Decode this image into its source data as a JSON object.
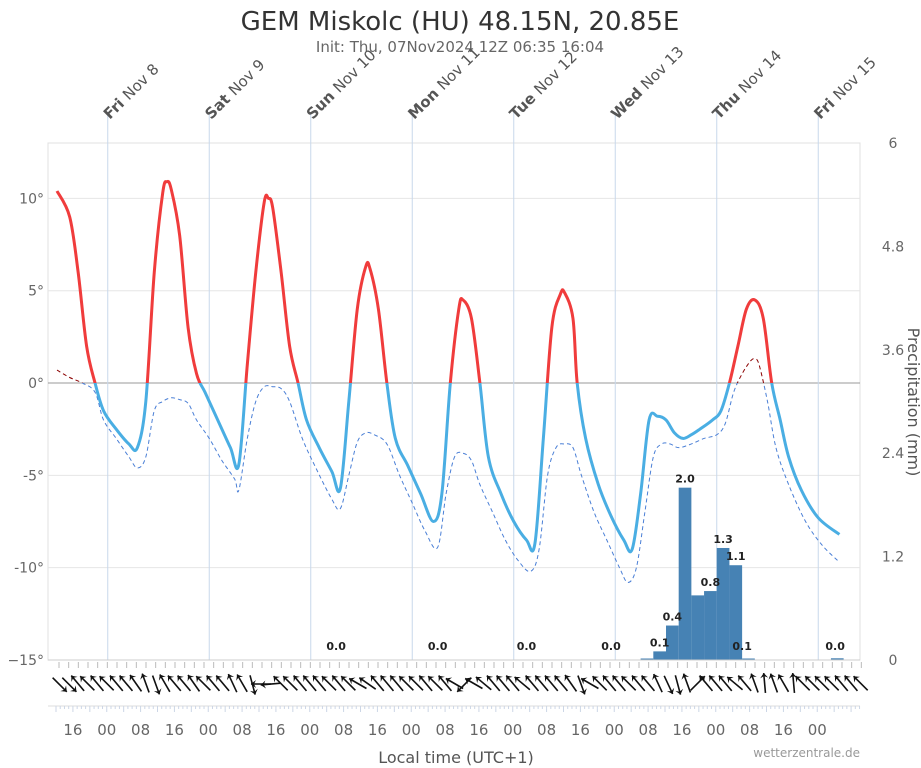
{
  "title": "GEM Miskolc (HU) 48.15N, 20.85E",
  "subtitle": "Init: Thu, 07Nov2024 12Z 06:35 16:04",
  "credit": "wetterzentrale.de",
  "xlabel": "Local time (UTC+1)",
  "y2label": "Precipitation (mm)",
  "colors": {
    "warm": "#f03c3c",
    "cold": "#4aaee3",
    "dew_warm": "#8b0000",
    "dew_cold": "#4a7fd6",
    "bars": "#4682b4",
    "grid": "#e6e6e6",
    "zero": "#999999",
    "day_line": "#c8d8ec"
  },
  "chart_data": {
    "type": "line",
    "x_unit": "hours since Thu 07 Nov 12:00 local",
    "xlim": [
      0,
      192
    ],
    "ylim": [
      -15,
      13
    ],
    "y_ticks": [
      {
        "v": 10,
        "label": "10°"
      },
      {
        "v": 5,
        "label": "5°"
      },
      {
        "v": 0,
        "label": "0°"
      },
      {
        "v": -5,
        "label": "-5°"
      },
      {
        "v": -10,
        "label": "-10°"
      },
      {
        "v": -15,
        "label": "−15°"
      }
    ],
    "y2lim": [
      0,
      6
    ],
    "y2_ticks": [
      {
        "v": 0,
        "label": "0"
      },
      {
        "v": 1.2,
        "label": "1.2"
      },
      {
        "v": 2.4,
        "label": "2.4"
      },
      {
        "v": 3.6,
        "label": "3.6"
      },
      {
        "v": 4.8,
        "label": "4.8"
      },
      {
        "v": 6,
        "label": "6"
      }
    ],
    "days": [
      {
        "t": 12,
        "day": "Fri",
        "date": "Nov 8"
      },
      {
        "t": 36,
        "day": "Sat",
        "date": "Nov 9"
      },
      {
        "t": 60,
        "day": "Sun",
        "date": "Nov 10"
      },
      {
        "t": 84,
        "day": "Mon",
        "date": "Nov 11"
      },
      {
        "t": 108,
        "day": "Tue",
        "date": "Nov 12"
      },
      {
        "t": 132,
        "day": "Wed",
        "date": "Nov 13"
      },
      {
        "t": 156,
        "day": "Thu",
        "date": "Nov 14"
      },
      {
        "t": 180,
        "day": "Fri",
        "date": "Nov 15"
      }
    ],
    "hour_ticks": [
      {
        "t": 4,
        "label": "16"
      },
      {
        "t": 12,
        "label": "00"
      },
      {
        "t": 20,
        "label": "08"
      },
      {
        "t": 28,
        "label": "16"
      },
      {
        "t": 36,
        "label": "00"
      },
      {
        "t": 44,
        "label": "08"
      },
      {
        "t": 52,
        "label": "16"
      },
      {
        "t": 60,
        "label": "00"
      },
      {
        "t": 68,
        "label": "08"
      },
      {
        "t": 76,
        "label": "16"
      },
      {
        "t": 84,
        "label": "00"
      },
      {
        "t": 92,
        "label": "08"
      },
      {
        "t": 100,
        "label": "16"
      },
      {
        "t": 108,
        "label": "00"
      },
      {
        "t": 116,
        "label": "08"
      },
      {
        "t": 124,
        "label": "16"
      },
      {
        "t": 132,
        "label": "00"
      },
      {
        "t": 140,
        "label": "08"
      },
      {
        "t": 148,
        "label": "16"
      },
      {
        "t": 156,
        "label": "00"
      },
      {
        "t": 164,
        "label": "08"
      },
      {
        "t": 172,
        "label": "16"
      },
      {
        "t": 180,
        "label": "00"
      }
    ],
    "series": [
      {
        "name": "Temperature",
        "points": [
          [
            0,
            10.4
          ],
          [
            3,
            9
          ],
          [
            5,
            6
          ],
          [
            7,
            2
          ],
          [
            9,
            0
          ],
          [
            11,
            -1.5
          ],
          [
            14,
            -2.5
          ],
          [
            17,
            -3.3
          ],
          [
            19,
            -3.5
          ],
          [
            21,
            -1
          ],
          [
            23,
            6
          ],
          [
            25,
            10.3
          ],
          [
            26,
            10.9
          ],
          [
            27,
            10.5
          ],
          [
            29,
            8
          ],
          [
            31,
            3
          ],
          [
            33,
            0.5
          ],
          [
            35,
            -0.5
          ],
          [
            38,
            -2
          ],
          [
            41,
            -3.5
          ],
          [
            43,
            -4.4
          ],
          [
            45,
            1
          ],
          [
            47,
            6
          ],
          [
            49,
            9.8
          ],
          [
            50,
            10
          ],
          [
            51,
            9.5
          ],
          [
            53,
            6
          ],
          [
            55,
            2
          ],
          [
            57,
            0
          ],
          [
            59,
            -2
          ],
          [
            62,
            -3.5
          ],
          [
            65,
            -4.8
          ],
          [
            67,
            -5.7
          ],
          [
            69,
            -1
          ],
          [
            71,
            4
          ],
          [
            73,
            6.3
          ],
          [
            74,
            6.2
          ],
          [
            76,
            4
          ],
          [
            78,
            0
          ],
          [
            80,
            -3
          ],
          [
            83,
            -4.5
          ],
          [
            86,
            -6
          ],
          [
            89,
            -7.5
          ],
          [
            91,
            -6
          ],
          [
            93,
            0
          ],
          [
            95,
            4
          ],
          [
            96,
            4.5
          ],
          [
            98,
            3.5
          ],
          [
            100,
            0
          ],
          [
            102,
            -4
          ],
          [
            105,
            -6
          ],
          [
            108,
            -7.5
          ],
          [
            111,
            -8.5
          ],
          [
            113,
            -8.7
          ],
          [
            115,
            -3
          ],
          [
            117,
            3
          ],
          [
            119,
            4.8
          ],
          [
            120,
            4.9
          ],
          [
            122,
            3.5
          ],
          [
            123,
            0
          ],
          [
            125,
            -3
          ],
          [
            128,
            -5.5
          ],
          [
            131,
            -7.2
          ],
          [
            134,
            -8.5
          ],
          [
            136,
            -9
          ],
          [
            138,
            -6
          ],
          [
            140,
            -2
          ],
          [
            142,
            -1.8
          ],
          [
            144,
            -2
          ],
          [
            146,
            -2.7
          ],
          [
            148,
            -3
          ],
          [
            150,
            -2.8
          ],
          [
            152,
            -2.5
          ],
          [
            155,
            -2
          ],
          [
            157,
            -1.5
          ],
          [
            159,
            0
          ],
          [
            161,
            2
          ],
          [
            163,
            4
          ],
          [
            165,
            4.5
          ],
          [
            167,
            3.5
          ],
          [
            169,
            0
          ],
          [
            171,
            -2
          ],
          [
            173,
            -4
          ],
          [
            176,
            -5.8
          ],
          [
            180,
            -7.3
          ],
          [
            185,
            -8.2
          ]
        ]
      },
      {
        "name": "Dew point",
        "points": [
          [
            0,
            0.7
          ],
          [
            3,
            0.3
          ],
          [
            6,
            0
          ],
          [
            9,
            -0.5
          ],
          [
            11,
            -2
          ],
          [
            14,
            -3
          ],
          [
            17,
            -4
          ],
          [
            19,
            -4.6
          ],
          [
            21,
            -4
          ],
          [
            23,
            -1.5
          ],
          [
            25,
            -1
          ],
          [
            27,
            -0.8
          ],
          [
            29,
            -0.9
          ],
          [
            31,
            -1.1
          ],
          [
            33,
            -2
          ],
          [
            36,
            -3
          ],
          [
            39,
            -4.2
          ],
          [
            42,
            -5.2
          ],
          [
            43,
            -5.8
          ],
          [
            45,
            -3
          ],
          [
            47,
            -1
          ],
          [
            49,
            -0.2
          ],
          [
            51,
            -0.2
          ],
          [
            53,
            -0.3
          ],
          [
            55,
            -1
          ],
          [
            58,
            -3
          ],
          [
            61,
            -4.5
          ],
          [
            65,
            -6.3
          ],
          [
            67,
            -6.8
          ],
          [
            69,
            -5
          ],
          [
            71,
            -3.2
          ],
          [
            73,
            -2.7
          ],
          [
            75,
            -2.8
          ],
          [
            78,
            -3.3
          ],
          [
            81,
            -5
          ],
          [
            84,
            -6.5
          ],
          [
            87,
            -8
          ],
          [
            90,
            -8.9
          ],
          [
            92,
            -6
          ],
          [
            94,
            -4
          ],
          [
            96,
            -3.8
          ],
          [
            98,
            -4.2
          ],
          [
            100,
            -5.5
          ],
          [
            103,
            -7
          ],
          [
            106,
            -8.5
          ],
          [
            109,
            -9.6
          ],
          [
            112,
            -10.2
          ],
          [
            114,
            -9
          ],
          [
            116,
            -5
          ],
          [
            118,
            -3.5
          ],
          [
            120,
            -3.3
          ],
          [
            122,
            -3.5
          ],
          [
            124,
            -5
          ],
          [
            127,
            -7
          ],
          [
            130,
            -8.5
          ],
          [
            133,
            -10
          ],
          [
            135,
            -10.8
          ],
          [
            137,
            -10
          ],
          [
            139,
            -7
          ],
          [
            141,
            -4
          ],
          [
            143,
            -3.3
          ],
          [
            145,
            -3.3
          ],
          [
            147,
            -3.5
          ],
          [
            150,
            -3.3
          ],
          [
            153,
            -3
          ],
          [
            156,
            -2.8
          ],
          [
            158,
            -2.2
          ],
          [
            160,
            -0.5
          ],
          [
            162,
            0.5
          ],
          [
            164,
            1.2
          ],
          [
            165,
            1.3
          ],
          [
            166,
            1
          ],
          [
            168,
            -1
          ],
          [
            170,
            -3.5
          ],
          [
            173,
            -5.5
          ],
          [
            177,
            -7.5
          ],
          [
            181,
            -8.8
          ],
          [
            185,
            -9.7
          ]
        ]
      }
    ],
    "precipitation": {
      "name": "Precipitation (mm)",
      "bars": [
        {
          "t0": 162,
          "t1": 165,
          "v": 0.01
        }
      ],
      "labeled_bars": [
        {
          "t0": 138,
          "t1": 141,
          "v": 0.01,
          "label": ""
        },
        {
          "t0": 141,
          "t1": 144,
          "v": 0.1,
          "label": "0.1"
        },
        {
          "t0": 144,
          "t1": 147,
          "v": 0.4,
          "label": "0.4"
        },
        {
          "t0": 147,
          "t1": 150,
          "v": 2.0,
          "label": "2.0"
        },
        {
          "t0": 150,
          "t1": 153,
          "v": 0.75,
          "label": ""
        },
        {
          "t0": 153,
          "t1": 156,
          "v": 0.8,
          "label": "0.8"
        },
        {
          "t0": 156,
          "t1": 159,
          "v": 1.3,
          "label": "1.3"
        },
        {
          "t0": 159,
          "t1": 162,
          "v": 1.1,
          "label": "1.1"
        },
        {
          "t0": 183,
          "t1": 186,
          "v": 0.02,
          "label": ""
        }
      ],
      "zero_labels": [
        {
          "t": 66,
          "label": "0.0"
        },
        {
          "t": 90,
          "label": "0.0"
        },
        {
          "t": 111,
          "label": "0.0"
        },
        {
          "t": 131,
          "label": "0.0"
        },
        {
          "t": 162,
          "label": "0.1"
        },
        {
          "t": 184,
          "label": "0.0"
        }
      ]
    },
    "wind_barbs_deg": [
      135,
      135,
      320,
      315,
      320,
      315,
      320,
      320,
      325,
      340,
      160,
      330,
      320,
      320,
      325,
      315,
      320,
      320,
      335,
      330,
      165,
      270,
      265,
      315,
      315,
      320,
      320,
      320,
      315,
      320,
      315,
      300,
      305,
      320,
      320,
      320,
      315,
      315,
      320,
      315,
      320,
      300,
      225,
      300,
      310,
      320,
      320,
      320,
      310,
      320,
      320,
      320,
      320,
      325,
      160,
      300,
      315,
      320,
      320,
      315,
      320,
      320,
      335,
      155,
      165,
      340,
      45,
      320,
      320,
      320,
      310,
      320,
      340,
      355,
      340,
      330,
      355,
      315,
      315,
      315,
      315,
      320,
      320,
      315
    ]
  }
}
